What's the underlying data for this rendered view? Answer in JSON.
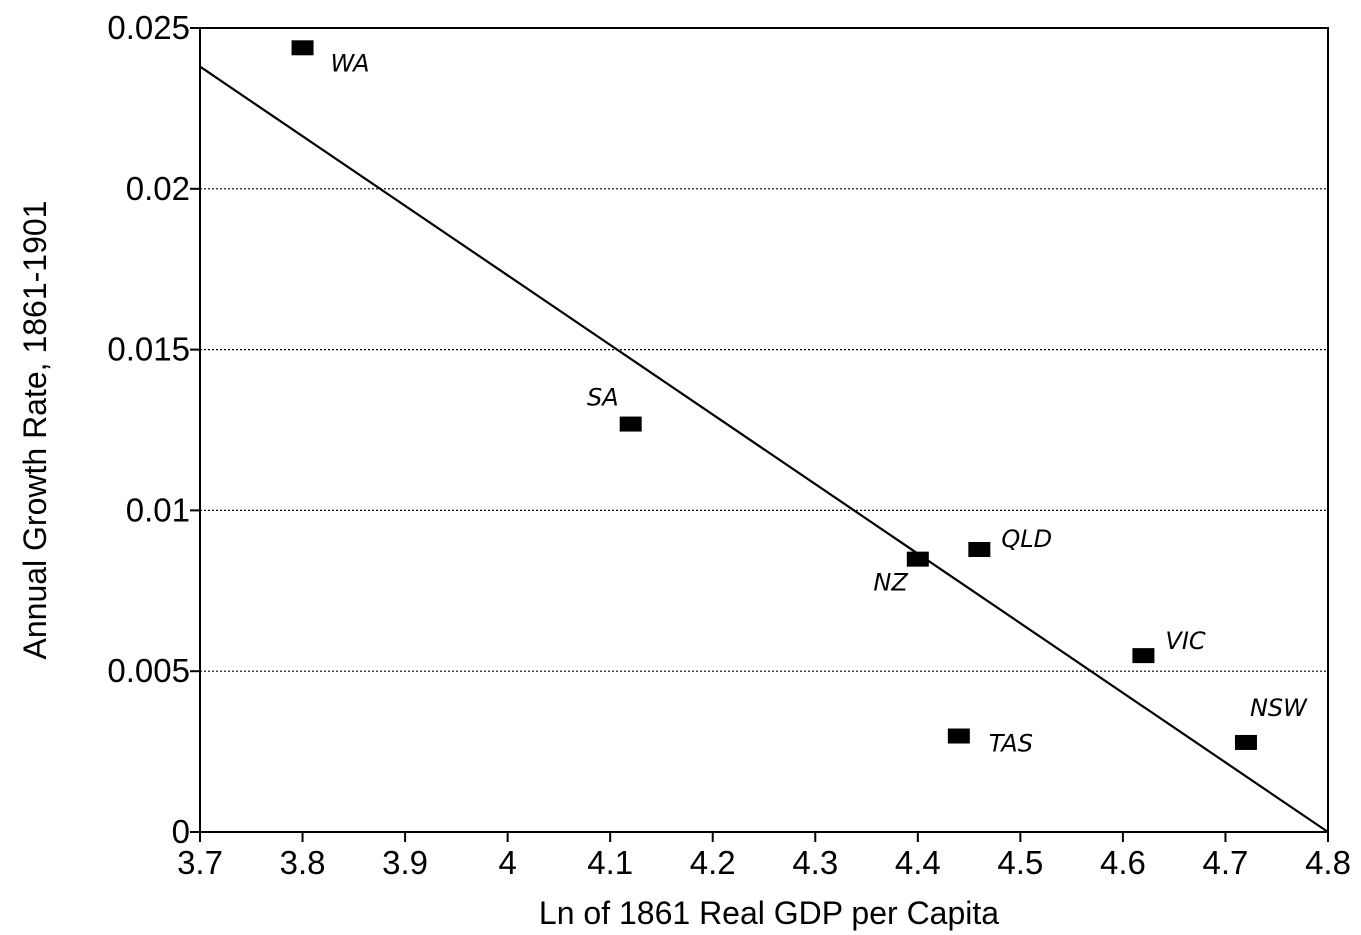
{
  "chart_data": {
    "type": "scatter",
    "xlabel": "Ln of 1861 Real GDP per Capita",
    "ylabel": "Annual Growth Rate, 1861-1901",
    "xlim": [
      3.7,
      4.8
    ],
    "ylim": [
      0,
      0.025
    ],
    "x_ticks": [
      "3.7",
      "3.8",
      "3.9",
      "4",
      "4.1",
      "4.2",
      "4.3",
      "4.4",
      "4.5",
      "4.6",
      "4.7",
      "4.8"
    ],
    "y_ticks": [
      "0",
      "0.005",
      "0.01",
      "0.015",
      "0.02",
      "0.025"
    ],
    "grid": "horizontal dotted",
    "points": [
      {
        "label": "WA",
        "x": 3.8,
        "y": 0.0244
      },
      {
        "label": "SA",
        "x": 4.12,
        "y": 0.0127
      },
      {
        "label": "NZ",
        "x": 4.4,
        "y": 0.0085
      },
      {
        "label": "QLD",
        "x": 4.46,
        "y": 0.0088
      },
      {
        "label": "TAS",
        "x": 4.44,
        "y": 0.003
      },
      {
        "label": "VIC",
        "x": 4.62,
        "y": 0.0055
      },
      {
        "label": "NSW",
        "x": 4.72,
        "y": 0.0028
      }
    ],
    "trendline": {
      "x": [
        3.7,
        4.8
      ],
      "y": [
        0.0238,
        0.0
      ]
    }
  }
}
